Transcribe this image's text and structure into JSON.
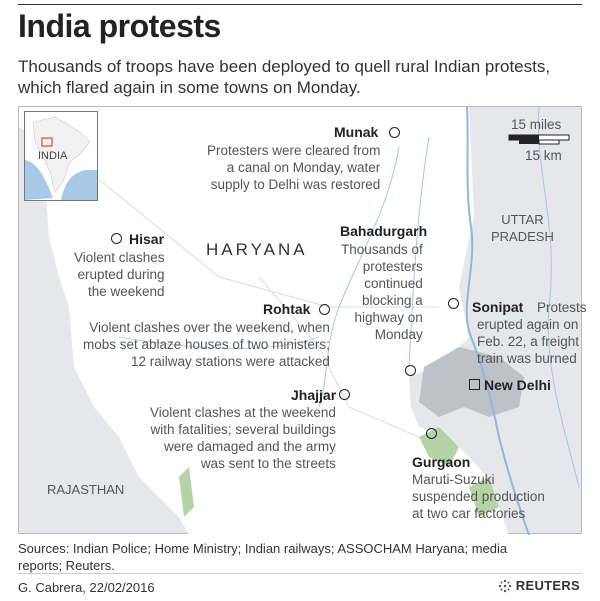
{
  "title": "India protests",
  "subtitle": "Thousands of troops have been deployed to quell rural Indian protests, which flared again in some towns on Monday.",
  "map": {
    "inset_label": "INDIA",
    "regions": {
      "state": "HARYANA",
      "uttar_pradesh": "UTTAR\nPRADESH",
      "rajasthan": "RAJASTHAN"
    },
    "scale": {
      "miles": "15 miles",
      "km": "15 km"
    },
    "cities": [
      {
        "name": "Munak",
        "note": "Protesters were cleared from\na canal on Monday, water\nsupply to Delhi was restored"
      },
      {
        "name": "Hisar",
        "note": "Violent clashes\nerupted during\nthe weekend"
      },
      {
        "name": "Bahadurgarh",
        "note": "Thousands of\nprotesters\ncontinued\nblocking a\nhighway on\nMonday"
      },
      {
        "name": "Rohtak",
        "note": "Violent clashes over the weekend, when\nmobs set ablaze houses of two ministers;\n12 railway stations were attacked"
      },
      {
        "name": "Sonipat",
        "note": "Protests\nerupted again on\nFeb. 22, a freight\ntrain was burned"
      },
      {
        "name": "New Delhi",
        "note": ""
      },
      {
        "name": "Jhajjar",
        "note": "Violent clashes at the weekend\nwith fatalities; several buildings\nwere damaged and the army\nwas sent to the streets"
      },
      {
        "name": "Gurgaon",
        "note": "Maruti-Suzuki\nsuspended production\nat two car factories"
      }
    ],
    "colors": {
      "haryana": "#ffffff",
      "outside": "#e5e7ea",
      "water": "#8fb8de",
      "urban": "#b9bec4",
      "forest": "#b5d3a6",
      "inset_marker": "#e0553b"
    }
  },
  "sources": "Sources: Indian Police; Home Ministry; Indian railways; ASSOCHAM Haryana; media reports; Reuters.",
  "credit": "G. Cabrera,  22/02/2016",
  "brand": "REUTERS"
}
